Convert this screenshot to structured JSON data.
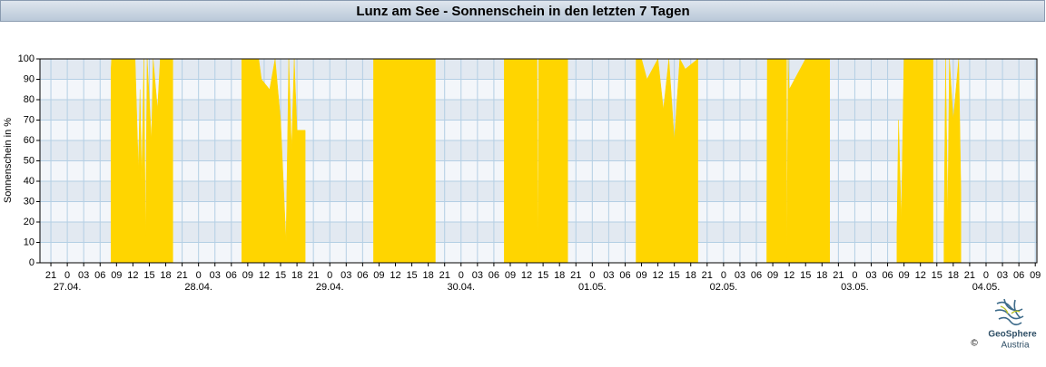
{
  "chart_data": {
    "type": "area",
    "title": "Lunz am See - Sonnenschein in den letzten 7 Tagen",
    "y_label": "Sonnenschein in %",
    "xlim": [
      -2,
      180.3
    ],
    "ylim": [
      0,
      100
    ],
    "yticks": [
      0,
      10,
      20,
      30,
      40,
      50,
      60,
      70,
      80,
      90,
      100
    ],
    "xticks": [
      {
        "value": 0,
        "label": "21"
      },
      {
        "value": 3,
        "label": "0"
      },
      {
        "value": 6,
        "label": "03"
      },
      {
        "value": 9,
        "label": "06"
      },
      {
        "value": 12,
        "label": "09"
      },
      {
        "value": 15,
        "label": "12"
      },
      {
        "value": 18,
        "label": "15"
      },
      {
        "value": 21,
        "label": "18"
      },
      {
        "value": 24,
        "label": "21"
      },
      {
        "value": 27,
        "label": "0"
      },
      {
        "value": 30,
        "label": "03"
      },
      {
        "value": 33,
        "label": "06"
      },
      {
        "value": 36,
        "label": "09"
      },
      {
        "value": 39,
        "label": "12"
      },
      {
        "value": 42,
        "label": "15"
      },
      {
        "value": 45,
        "label": "18"
      },
      {
        "value": 48,
        "label": "21"
      },
      {
        "value": 51,
        "label": "0"
      },
      {
        "value": 54,
        "label": "03"
      },
      {
        "value": 57,
        "label": "06"
      },
      {
        "value": 60,
        "label": "09"
      },
      {
        "value": 63,
        "label": "12"
      },
      {
        "value": 66,
        "label": "15"
      },
      {
        "value": 69,
        "label": "18"
      },
      {
        "value": 72,
        "label": "21"
      },
      {
        "value": 75,
        "label": "0"
      },
      {
        "value": 78,
        "label": "03"
      },
      {
        "value": 81,
        "label": "06"
      },
      {
        "value": 84,
        "label": "09"
      },
      {
        "value": 87,
        "label": "12"
      },
      {
        "value": 90,
        "label": "15"
      },
      {
        "value": 93,
        "label": "18"
      },
      {
        "value": 96,
        "label": "21"
      },
      {
        "value": 99,
        "label": "0"
      },
      {
        "value": 102,
        "label": "03"
      },
      {
        "value": 105,
        "label": "06"
      },
      {
        "value": 108,
        "label": "09"
      },
      {
        "value": 111,
        "label": "12"
      },
      {
        "value": 114,
        "label": "15"
      },
      {
        "value": 117,
        "label": "18"
      },
      {
        "value": 120,
        "label": "21"
      },
      {
        "value": 123,
        "label": "0"
      },
      {
        "value": 126,
        "label": "03"
      },
      {
        "value": 129,
        "label": "06"
      },
      {
        "value": 132,
        "label": "09"
      },
      {
        "value": 135,
        "label": "12"
      },
      {
        "value": 138,
        "label": "15"
      },
      {
        "value": 141,
        "label": "18"
      },
      {
        "value": 144,
        "label": "21"
      },
      {
        "value": 147,
        "label": "0"
      },
      {
        "value": 150,
        "label": "03"
      },
      {
        "value": 153,
        "label": "06"
      },
      {
        "value": 156,
        "label": "09"
      },
      {
        "value": 159,
        "label": "12"
      },
      {
        "value": 162,
        "label": "15"
      },
      {
        "value": 165,
        "label": "18"
      },
      {
        "value": 168,
        "label": "21"
      },
      {
        "value": 171,
        "label": "0"
      },
      {
        "value": 174,
        "label": "03"
      },
      {
        "value": 177,
        "label": "06"
      },
      {
        "value": 180,
        "label": "09"
      }
    ],
    "date_labels": [
      {
        "value": 3,
        "label": "27.04."
      },
      {
        "value": 27,
        "label": "28.04."
      },
      {
        "value": 51,
        "label": "29.04."
      },
      {
        "value": 75,
        "label": "30.04."
      },
      {
        "value": 99,
        "label": "01.05."
      },
      {
        "value": 123,
        "label": "02.05."
      },
      {
        "value": 147,
        "label": "03.05."
      },
      {
        "value": 171,
        "label": "04.05."
      }
    ],
    "grid": true,
    "color": "#ffd500",
    "x": [
      11,
      11.1,
      15.4,
      15.6,
      16.0,
      16.3,
      16.6,
      17.0,
      17.3,
      17.6,
      18.4,
      18.7,
      19.5,
      20.0,
      22.3,
      28,
      34.9,
      35,
      38,
      38.5,
      40,
      41,
      42,
      42.5,
      43,
      43.5,
      44,
      44.5,
      45,
      46.5,
      52,
      59,
      70.3,
      76,
      82.9,
      88.9,
      89.0,
      89.2,
      94.5,
      100,
      107,
      108,
      109,
      111,
      112,
      113,
      114,
      115,
      116,
      118.3,
      124,
      130.9,
      131,
      134.5,
      134.6,
      134.8,
      135,
      138,
      142.4,
      148,
      154.7,
      155,
      155.5,
      156,
      156.5,
      161.3,
      162.3,
      163.3,
      163.6,
      164,
      164.3,
      165,
      166,
      166.4
    ],
    "values": [
      95,
      100,
      100,
      82,
      45,
      85,
      40,
      100,
      12,
      100,
      60,
      100,
      75,
      100,
      100,
      null,
      100,
      100,
      100,
      90,
      85,
      100,
      70,
      40,
      10,
      100,
      55,
      100,
      65,
      65,
      null,
      100,
      100,
      null,
      100,
      100,
      0,
      100,
      100,
      null,
      100,
      100,
      90,
      100,
      75,
      100,
      60,
      100,
      95,
      100,
      null,
      25,
      100,
      100,
      0,
      100,
      85,
      100,
      100,
      null,
      15,
      70,
      20,
      100,
      100,
      100,
      null,
      10,
      100,
      20,
      100,
      70,
      100,
      35
    ]
  },
  "logo": {
    "name": "GeoSphere",
    "country": "Austria",
    "copyright": "©"
  }
}
